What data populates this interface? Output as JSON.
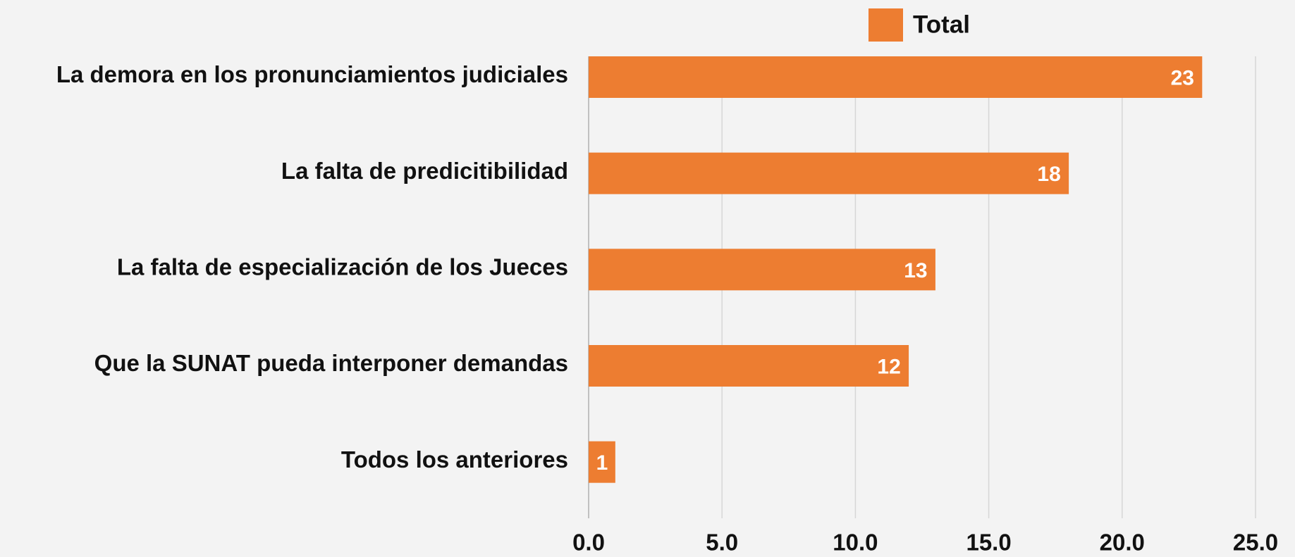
{
  "chart_data": {
    "type": "barh",
    "categories": [
      "La demora en los pronunciamientos judiciales",
      "La falta de predicitibilidad",
      "La falta de especialización de los Jueces",
      "Que la SUNAT pueda interponer demandas",
      "Todos los anteriores"
    ],
    "series": [
      {
        "name": "Total",
        "color": "#ed7d31",
        "values": [
          23,
          18,
          13,
          12,
          1
        ]
      }
    ],
    "xlim": [
      0,
      25
    ],
    "xticks": [
      {
        "value": 0,
        "label": "0.0"
      },
      {
        "value": 5,
        "label": "5.0"
      },
      {
        "value": 10,
        "label": "10.0"
      },
      {
        "value": 15,
        "label": "15.0"
      },
      {
        "value": 20,
        "label": "20.0"
      },
      {
        "value": 25,
        "label": "25.0"
      }
    ],
    "grid": true,
    "legend": "top"
  }
}
